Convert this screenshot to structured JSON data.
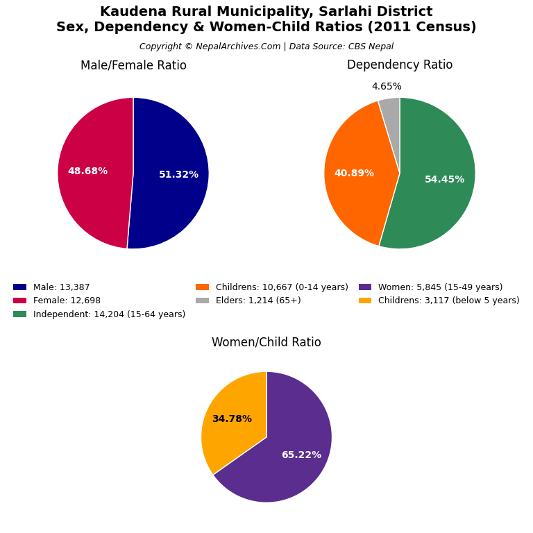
{
  "title": "Kaudena Rural Municipality, Sarlahi District\nSex, Dependency & Women-Child Ratios (2011 Census)",
  "subtitle": "Copyright © NepalArchives.Com | Data Source: CBS Nepal",
  "legend": "center",
  "chart_data": [
    {
      "type": "pie",
      "title": "Male/Female Ratio",
      "categories": [
        "Male: 13,387",
        "Female: 12,698"
      ],
      "values": [
        51.32,
        48.68
      ],
      "value_labels": [
        "51.32%",
        "48.68%"
      ],
      "colors": [
        "#00008B",
        "#CC0044"
      ],
      "data_labels": true
    },
    {
      "type": "pie",
      "title": "Dependency Ratio",
      "categories": [
        "Independent: 14,204 (15-64 years)",
        "Childrens: 10,667 (0-14 years)",
        "Elders: 1,214 (65+)"
      ],
      "values": [
        54.45,
        40.89,
        4.65
      ],
      "value_labels": [
        "54.45%",
        "40.89%",
        "4.65%"
      ],
      "colors": [
        "#2E8B57",
        "#FF6600",
        "#A9A9A9"
      ],
      "data_labels": true
    },
    {
      "type": "pie",
      "title": "Women/Child Ratio",
      "categories": [
        "Women: 5,845 (15-49 years)",
        "Childrens: 3,117 (below 5 years)"
      ],
      "values": [
        65.22,
        34.78
      ],
      "value_labels": [
        "65.22%",
        "34.78%"
      ],
      "colors": [
        "#5B2D8E",
        "#FFA500"
      ],
      "data_labels": true
    }
  ]
}
